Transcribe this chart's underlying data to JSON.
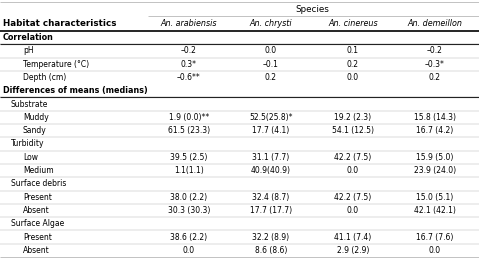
{
  "title": "Species",
  "col_header_label": "Habitat characteristics",
  "col_headers": [
    "An. arabiensis",
    "An. chrysti",
    "An. cinereus",
    "An. demeillon"
  ],
  "sections": [
    {
      "name": "Correlation",
      "rows": [
        {
          "label": "pH",
          "indent": 1,
          "values": [
            "–0.2",
            "0.0",
            "0.1",
            "–0.2"
          ]
        },
        {
          "label": "Temperature (°C)",
          "indent": 1,
          "values": [
            "0.3*",
            "–0.1",
            "0.2",
            "–0.3*"
          ]
        },
        {
          "label": "Depth (cm)",
          "indent": 1,
          "values": [
            "–0.6**",
            "0.2",
            "0.0",
            "0.2"
          ]
        }
      ]
    },
    {
      "name": "Differences of means (medians)",
      "rows": [
        {
          "label": "Substrate",
          "indent": 0,
          "values": [
            "",
            "",
            "",
            ""
          ],
          "subheader": true
        },
        {
          "label": "Muddy",
          "indent": 1,
          "values": [
            "1.9 (0.0)**",
            "52.5(25.8)*",
            "19.2 (2.3)",
            "15.8 (14.3)"
          ]
        },
        {
          "label": "Sandy",
          "indent": 1,
          "values": [
            "61.5 (23.3)",
            "17.7 (4.1)",
            "54.1 (12.5)",
            "16.7 (4.2)"
          ]
        },
        {
          "label": "Turbidity",
          "indent": 0,
          "values": [
            "",
            "",
            "",
            ""
          ],
          "subheader": true
        },
        {
          "label": "Low",
          "indent": 1,
          "values": [
            "39.5 (2.5)",
            "31.1 (7.7)",
            "42.2 (7.5)",
            "15.9 (5.0)"
          ]
        },
        {
          "label": "Medium",
          "indent": 1,
          "values": [
            "1.1(1.1)",
            "40.9(40.9)",
            "0.0",
            "23.9 (24.0)"
          ]
        },
        {
          "label": "Surface debris",
          "indent": 0,
          "values": [
            "",
            "",
            "",
            ""
          ],
          "subheader": true
        },
        {
          "label": "Present",
          "indent": 1,
          "values": [
            "38.0 (2.2)",
            "32.4 (8.7)",
            "42.2 (7.5)",
            "15.0 (5.1)"
          ]
        },
        {
          "label": "Absent",
          "indent": 1,
          "values": [
            "30.3 (30.3)",
            "17.7 (17.7)",
            "0.0",
            "42.1 (42.1)"
          ]
        },
        {
          "label": "Surface Algae",
          "indent": 0,
          "values": [
            "",
            "",
            "",
            ""
          ],
          "subheader": true
        },
        {
          "label": "Present",
          "indent": 1,
          "values": [
            "38.6 (2.2)",
            "32.2 (8.9)",
            "41.1 (7.4)",
            "16.7 (7.6)"
          ]
        },
        {
          "label": "Absent",
          "indent": 1,
          "values": [
            "0.0",
            "8.6 (8.6)",
            "2.9 (2.9)",
            "0.0"
          ]
        }
      ]
    }
  ],
  "bg_color": "#ffffff",
  "line_color": "#aaaaaa",
  "bold_line_color": "#000000",
  "font_size": 5.8,
  "header_font_size": 6.3
}
